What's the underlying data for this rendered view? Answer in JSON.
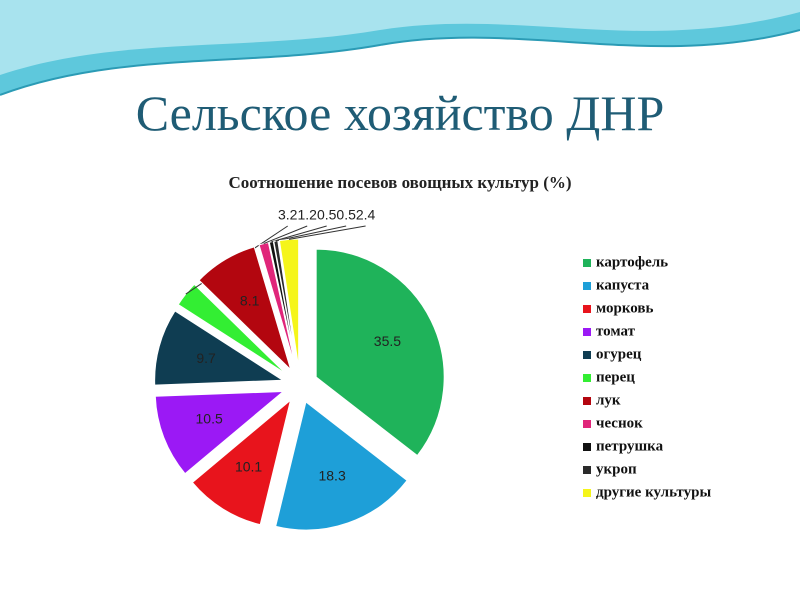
{
  "chart_data": {
    "type": "pie",
    "title": "Сельское хозяйство ДНР",
    "subtitle": "Соотношение посевов овощных культур (%)",
    "categories": [
      "картофель",
      "капуста",
      "морковь",
      "томат",
      "огурец",
      "перец",
      "лук",
      "чеснок",
      "петрушка",
      "укроп",
      "другие культуры"
    ],
    "values": [
      35.5,
      18.3,
      10.1,
      10.5,
      9.7,
      3.2,
      8.1,
      1.2,
      0.5,
      0.5,
      2.4
    ],
    "colors": [
      "#1fb35a",
      "#1e9fd8",
      "#e8141c",
      "#9b19f5",
      "#0f3d52",
      "#33ee33",
      "#b3060f",
      "#e0267a",
      "#111111",
      "#2a2a2a",
      "#f5f51a"
    ],
    "legend": "right"
  }
}
